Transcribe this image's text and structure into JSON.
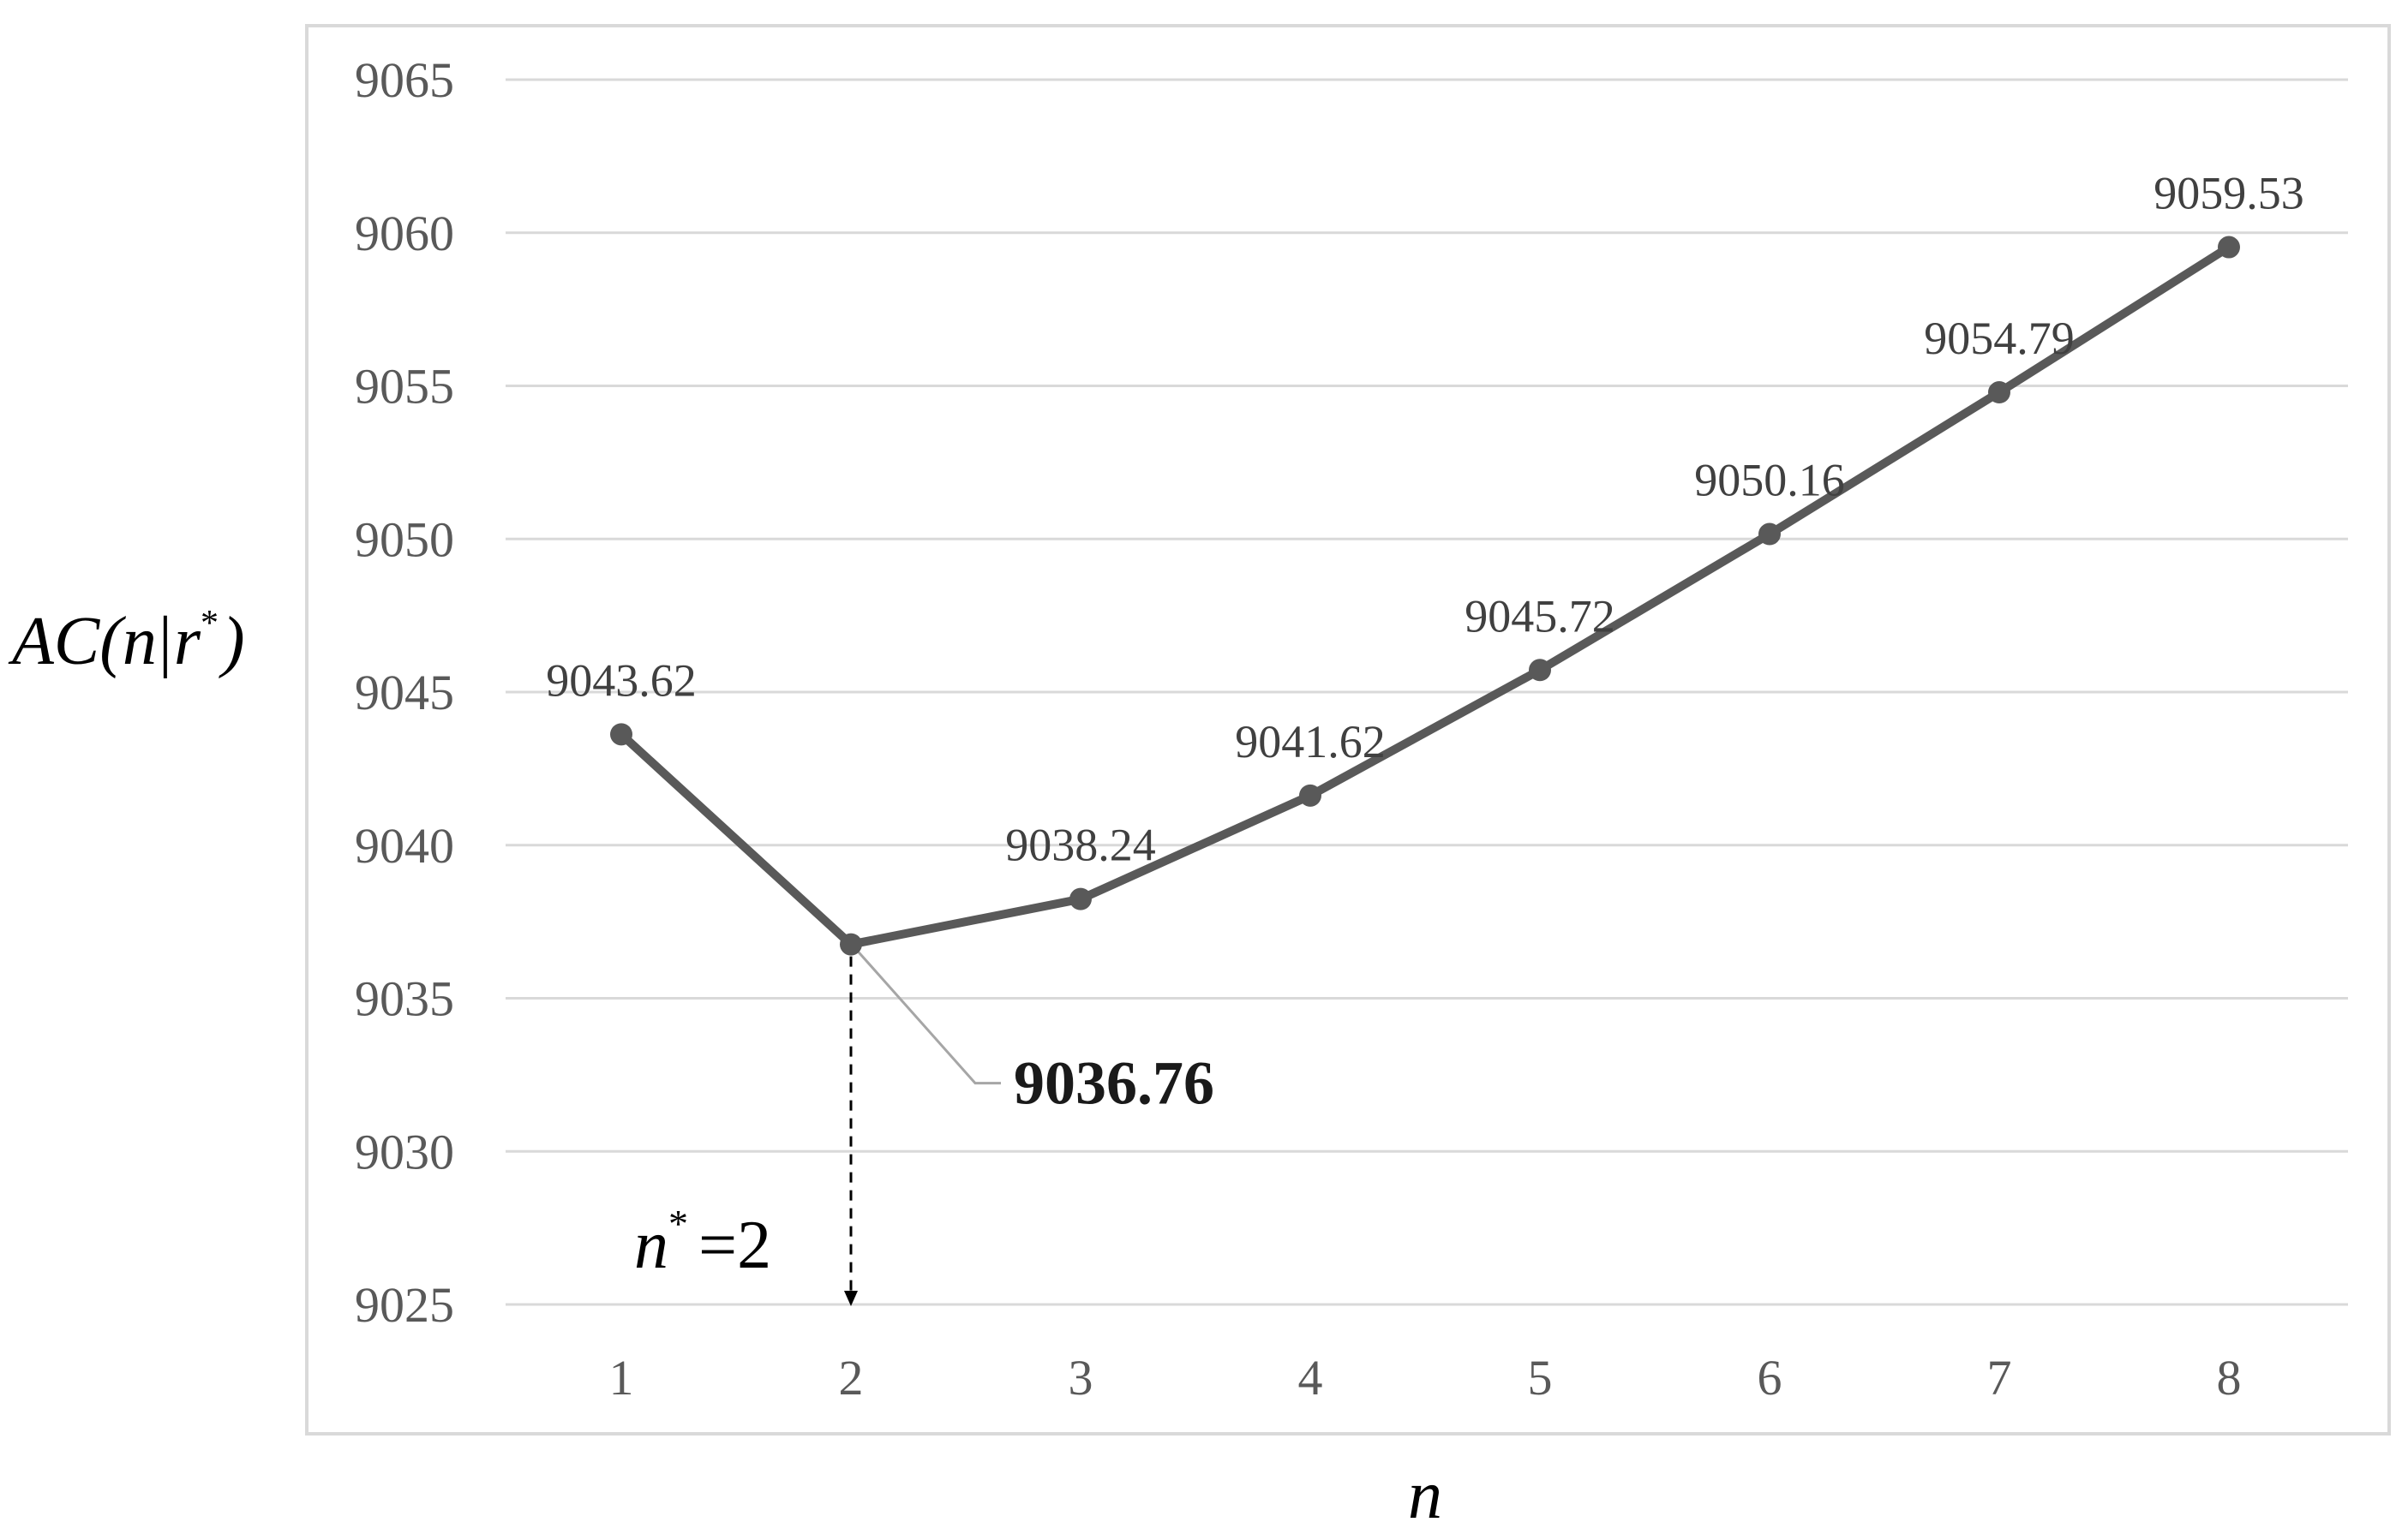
{
  "chart_data": {
    "type": "line",
    "x": [
      1,
      2,
      3,
      4,
      5,
      6,
      7,
      8
    ],
    "categories": [
      "1",
      "2",
      "3",
      "4",
      "5",
      "6",
      "7",
      "8"
    ],
    "series": [
      {
        "values": [
          9043.62,
          9036.76,
          9038.24,
          9041.62,
          9045.72,
          9050.16,
          9054.79,
          9059.53
        ]
      }
    ],
    "data_labels": [
      "9043.62",
      "",
      "9038.24",
      "9041.62",
      "9045.72",
      "9050.16",
      "9054.79",
      "9059.53"
    ],
    "ylim": [
      9025,
      9065
    ],
    "yticks": [
      "9025",
      "9030",
      "9035",
      "9040",
      "9045",
      "9050",
      "9055",
      "9060",
      "9065"
    ],
    "grid": "horizontal",
    "legend": "none",
    "xlabel": "n",
    "ylabel": {
      "a": "AC(",
      "b": "n",
      "c": "|",
      "d": "r",
      "e": "*",
      "f": ")"
    },
    "annotations": {
      "minimum_label": "9036.76",
      "minimum_x": 2,
      "minimum_y": 9036.76,
      "optimum_n": {
        "symbol": "n",
        "sup": "*",
        "rest": "=2"
      }
    },
    "colors": {
      "line": "#595959",
      "grid": "#d9d9d9",
      "frame": "#d9d9d9",
      "leader": "#a6a6a6"
    }
  }
}
